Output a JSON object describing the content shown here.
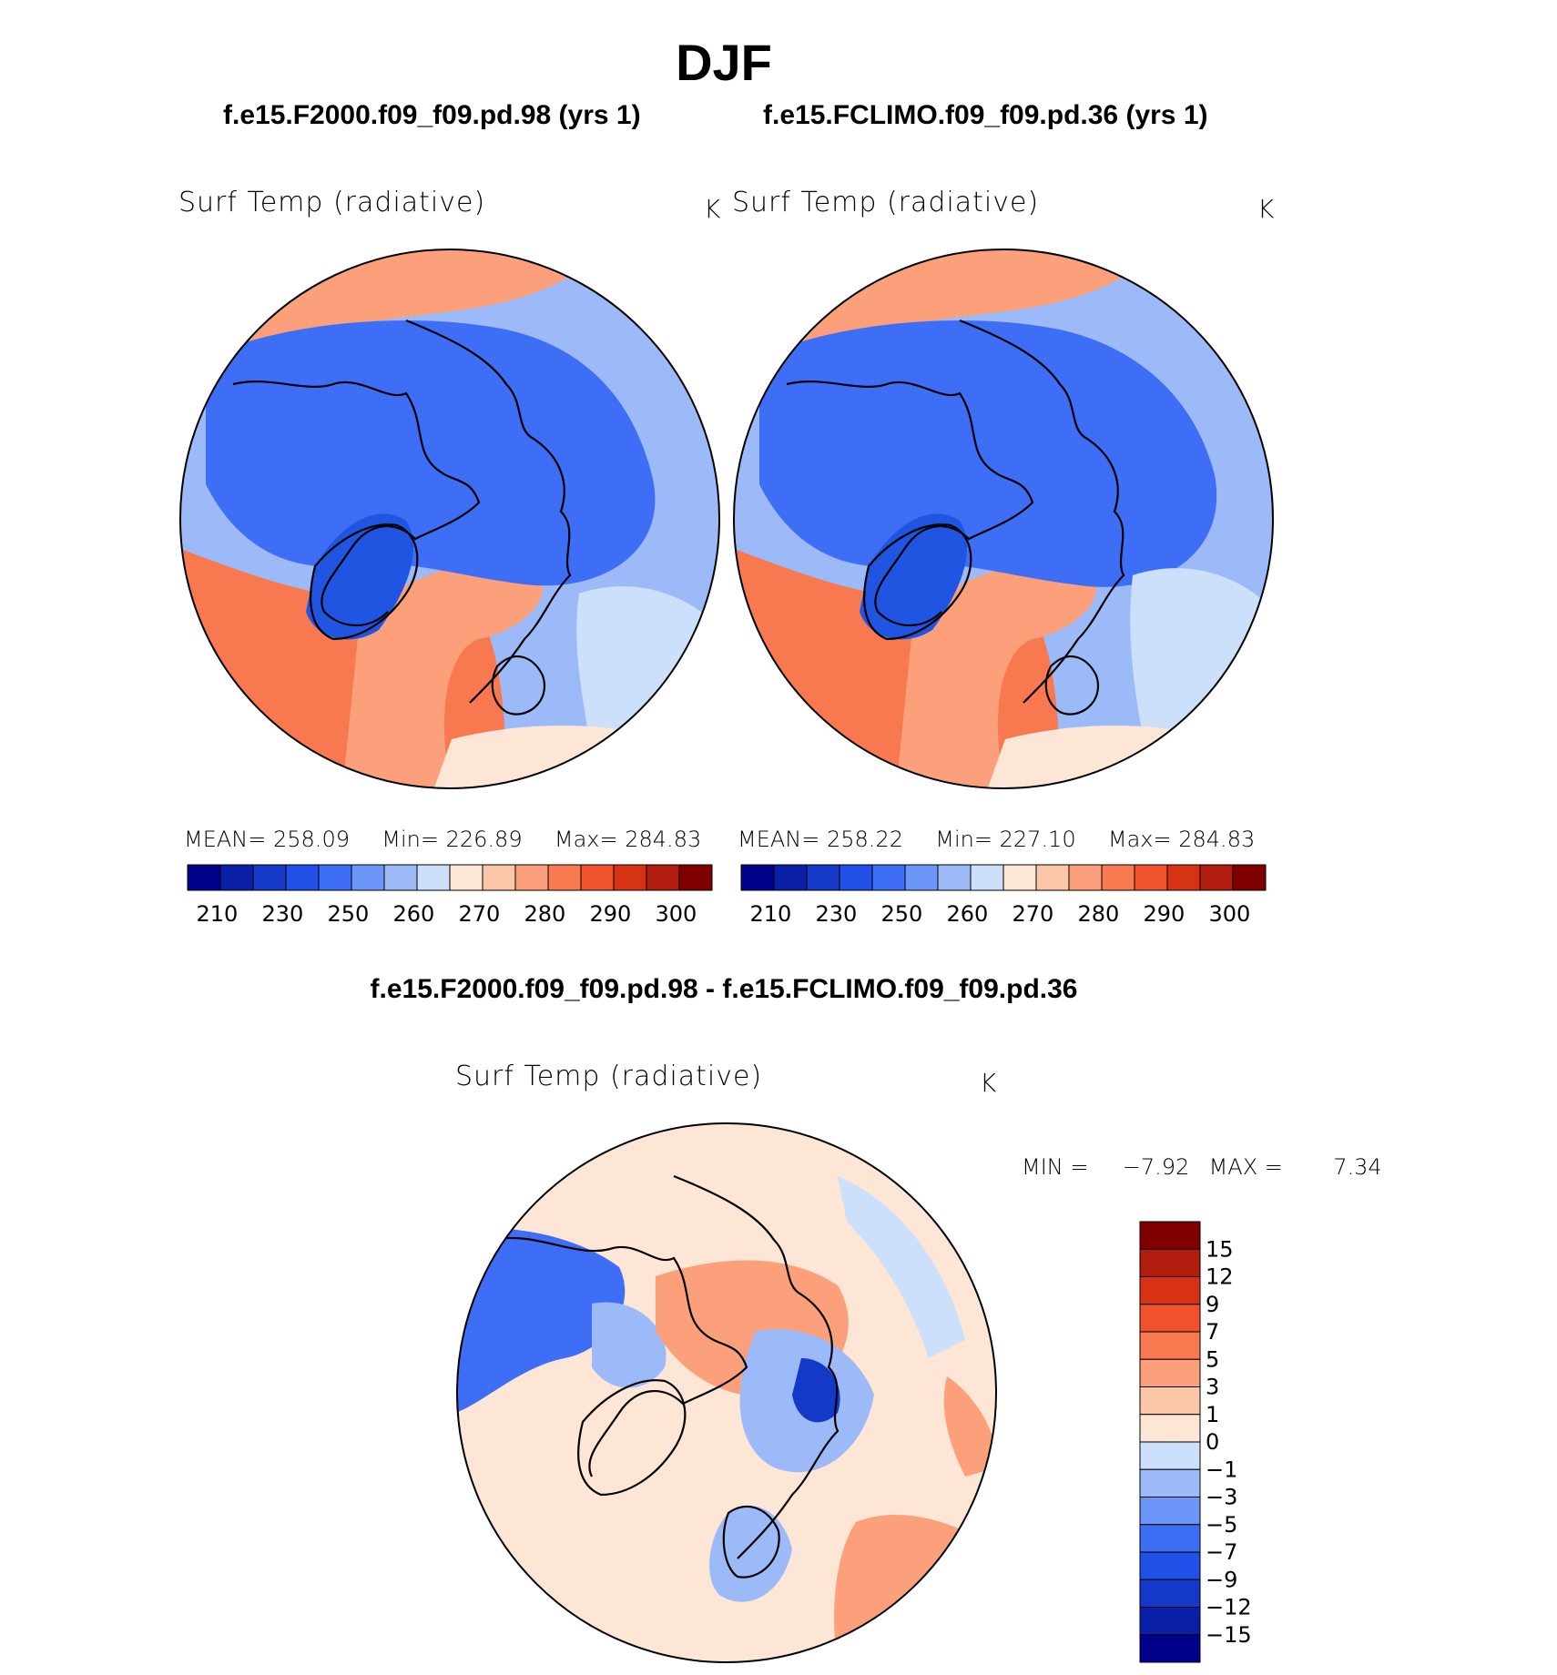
{
  "title": "DJF",
  "panels": [
    {
      "case_title": "f.e15.F2000.f09_f09.pd.98 (yrs 1)",
      "variable": "Surf Temp (radiative)",
      "units": "K",
      "stats": {
        "mean_label": "MEAN=",
        "mean": "258.09",
        "min_label": "Min=",
        "min": "226.89",
        "max_label": "Max=",
        "max": "284.83"
      }
    },
    {
      "case_title": "f.e15.FCLIMO.f09_f09.pd.36 (yrs 1)",
      "variable": "Surf Temp (radiative)",
      "units": "K",
      "stats": {
        "mean_label": "MEAN=",
        "mean": "258.22",
        "min_label": "Min=",
        "min": "227.10",
        "max_label": "Max=",
        "max": "284.83"
      }
    }
  ],
  "abs_colorbar": {
    "ticks": [
      "210",
      "230",
      "250",
      "260",
      "270",
      "280",
      "290",
      "300"
    ],
    "colors": [
      "#00008b",
      "#0a1fa8",
      "#1438c8",
      "#2050e8",
      "#3d6ef5",
      "#6b96f7",
      "#9dbaf8",
      "#cde0fb",
      "#fde6d6",
      "#fcc6a8",
      "#fba07a",
      "#f8784f",
      "#f0522e",
      "#d83215",
      "#b01c0e",
      "#800000"
    ]
  },
  "diff_panel": {
    "title": "f.e15.F2000.f09_f09.pd.98 - f.e15.FCLIMO.f09_f09.pd.36",
    "variable": "Surf Temp (radiative)",
    "units": "K",
    "min_label": "MIN =",
    "min": "−7.92",
    "max_label": "MAX =",
    "max": "7.34",
    "colorbar": {
      "levels": [
        "15",
        "12",
        "9",
        "7",
        "5",
        "3",
        "1",
        "0",
        "−1",
        "−3",
        "−5",
        "−7",
        "−9",
        "−12",
        "−15"
      ],
      "colors": [
        "#800000",
        "#b01c0e",
        "#d83215",
        "#f0522e",
        "#f8784f",
        "#fba07a",
        "#fcc6a8",
        "#fde6d6",
        "#cde0fb",
        "#9dbaf8",
        "#6b96f7",
        "#3d6ef5",
        "#2050e8",
        "#1438c8",
        "#0a1fa8",
        "#00008b"
      ]
    }
  },
  "map_colors": {
    "deep_blue": "#1f55e0",
    "mid_blue": "#3d6ef5",
    "light_blue": "#9dbaf8",
    "pale_blue": "#cde0fb",
    "pale_orange": "#fde6d6",
    "light_orange": "#fba07a",
    "orange": "#f8784f",
    "dark_blue": "#1438c8"
  }
}
